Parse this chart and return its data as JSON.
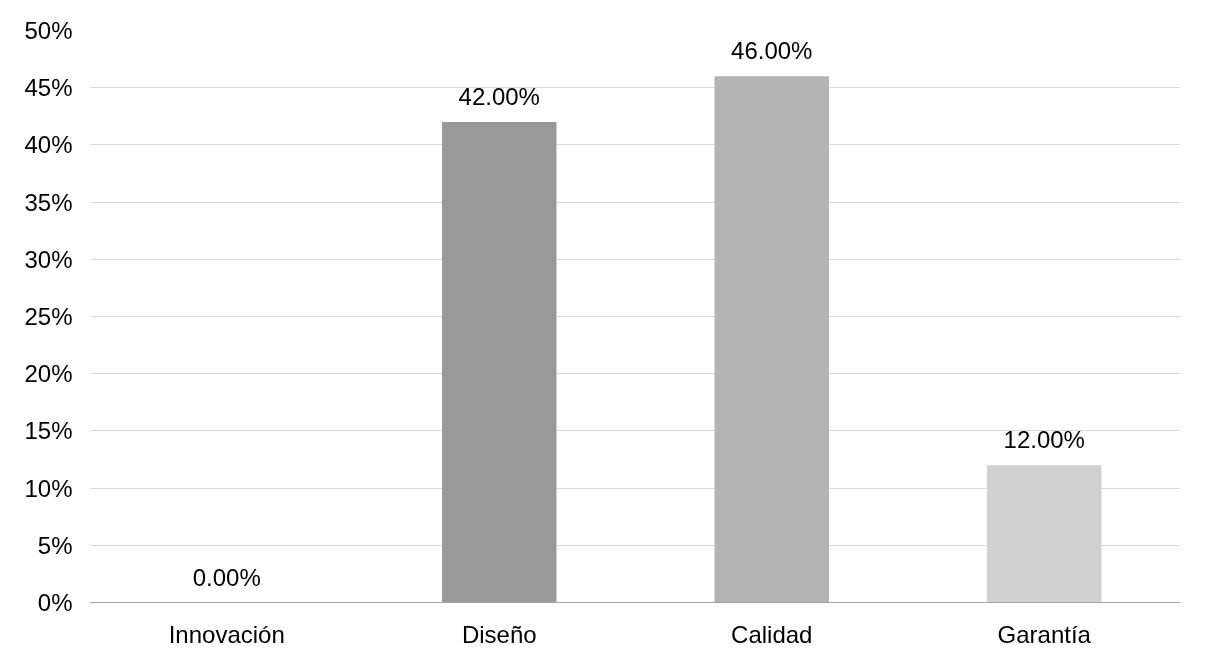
{
  "chart_data": {
    "type": "bar",
    "categories": [
      "Innovación",
      "Diseño",
      "Calidad",
      "Garantía"
    ],
    "values": [
      0,
      42,
      46,
      12
    ],
    "colors": [
      "#7f7f7f",
      "#999999",
      "#b3b3b3",
      "#d0d0d0"
    ],
    "value_labels": [
      "0.00%",
      "42.00%",
      "46.00%",
      "12.00%"
    ],
    "ylim": [
      0,
      50
    ],
    "yticks": [
      {
        "value": 0,
        "label": "0%"
      },
      {
        "value": 5,
        "label": "5%"
      },
      {
        "value": 10,
        "label": "10%"
      },
      {
        "value": 15,
        "label": "15%"
      },
      {
        "value": 20,
        "label": "20%"
      },
      {
        "value": 25,
        "label": "25%"
      },
      {
        "value": 30,
        "label": "30%"
      },
      {
        "value": 35,
        "label": "35%"
      },
      {
        "value": 40,
        "label": "40%"
      },
      {
        "value": 45,
        "label": "45%"
      },
      {
        "value": 50,
        "label": "50%"
      }
    ],
    "grid": "y"
  }
}
